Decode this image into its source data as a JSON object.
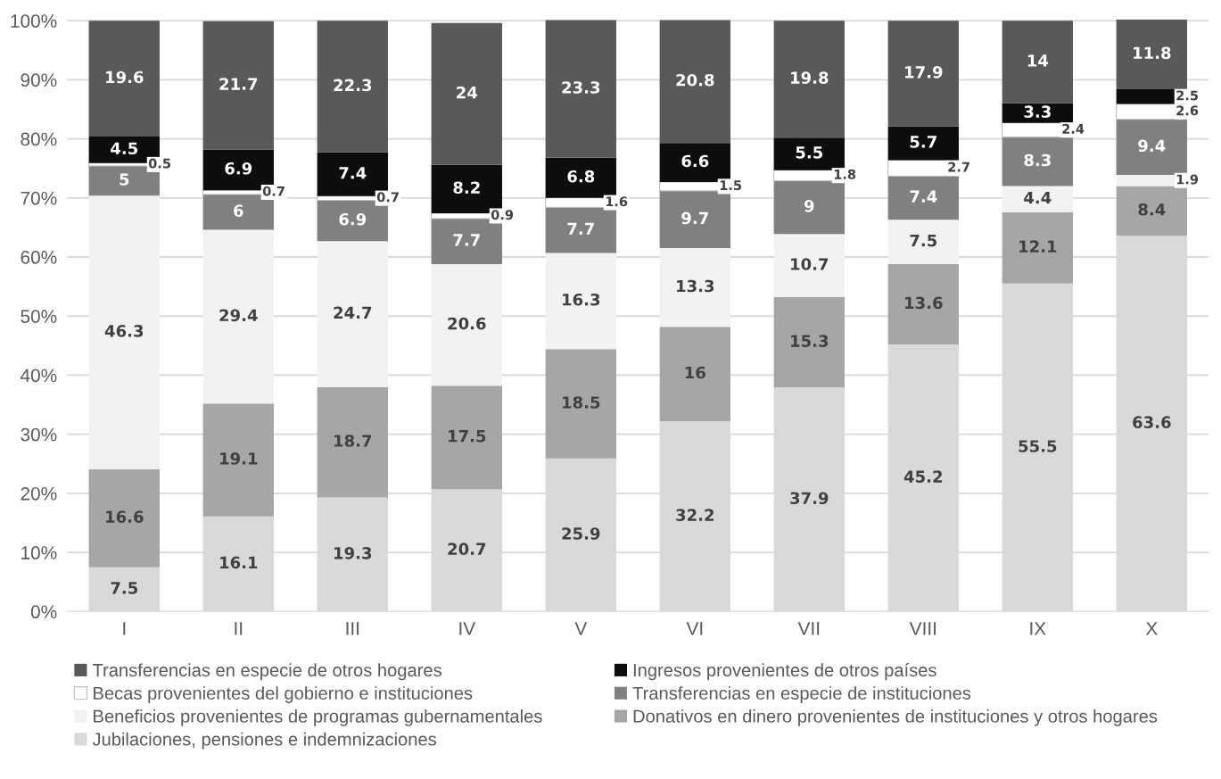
{
  "chart_data": {
    "type": "bar",
    "stacked": true,
    "categories": [
      "I",
      "II",
      "III",
      "IV",
      "V",
      "VI",
      "VII",
      "VIII",
      "IX",
      "X"
    ],
    "series": [
      {
        "name": "Jubilaciones, pensiones e indemnizaciones",
        "color": "#d9d9d9",
        "values": [
          7.5,
          16.1,
          19.3,
          20.7,
          25.9,
          32.2,
          37.9,
          45.2,
          55.5,
          63.6
        ]
      },
      {
        "name": "Donativos en dinero provenientes de instituciones y otros hogares",
        "color": "#a6a6a6",
        "values": [
          16.6,
          19.1,
          18.7,
          17.5,
          18.5,
          16,
          15.3,
          13.6,
          12.1,
          8.4
        ]
      },
      {
        "name": "Beneficios provenientes de programas gubernamentales",
        "color": "#f2f2f2",
        "values": [
          46.3,
          29.4,
          24.7,
          20.6,
          16.3,
          13.3,
          10.7,
          7.5,
          4.4,
          1.9
        ]
      },
      {
        "name": "Transferencias en especie de instituciones",
        "color": "#808080",
        "values": [
          5,
          6,
          6.9,
          7.7,
          7.7,
          9.7,
          9,
          7.4,
          8.3,
          9.4
        ]
      },
      {
        "name": "Becas provenientes del gobierno e instituciones",
        "color": "#ffffff",
        "values": [
          0.5,
          0.7,
          0.7,
          0.9,
          1.6,
          1.5,
          1.8,
          2.7,
          2.4,
          2.6
        ]
      },
      {
        "name": "Ingresos provenientes de otros países",
        "color": "#0d0d0d",
        "values": [
          4.5,
          6.9,
          7.4,
          8.2,
          6.8,
          6.6,
          5.5,
          5.7,
          3.3,
          2.5
        ]
      },
      {
        "name": "Transferencias en especie de otros hogares",
        "color": "#595959",
        "values": [
          19.6,
          21.7,
          22.3,
          24,
          23.3,
          20.8,
          19.8,
          17.9,
          14,
          11.8
        ]
      }
    ],
    "ylim": [
      0,
      100.2
    ],
    "yticks": [
      {
        "value": 0,
        "label": "0%"
      },
      {
        "value": 10,
        "label": "10%"
      },
      {
        "value": 20,
        "label": "20%"
      },
      {
        "value": 30,
        "label": "30%"
      },
      {
        "value": 40,
        "label": "40%"
      },
      {
        "value": 50,
        "label": "50%"
      },
      {
        "value": 60,
        "label": "60%"
      },
      {
        "value": 70,
        "label": "70%"
      },
      {
        "value": 80,
        "label": "80%"
      },
      {
        "value": 90,
        "label": "90%"
      },
      {
        "value": 100,
        "label": "100%"
      }
    ],
    "grid": "y",
    "legend": "bottom",
    "data_labels": true
  }
}
